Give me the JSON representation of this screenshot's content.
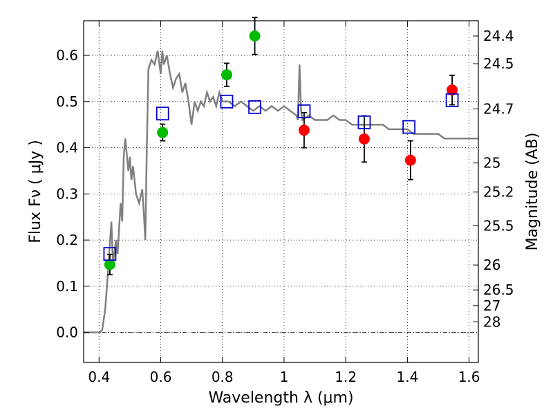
{
  "chart_data": {
    "type": "scatter",
    "xlabel": "Wavelength  λ (μm)",
    "ylabel": "Flux  Fν  ( μJy )",
    "y2label": "Magnitude (AB)",
    "xlim": [
      0.35,
      1.63
    ],
    "ylim": [
      -0.065,
      0.675
    ],
    "grid": true,
    "x_ticks": [
      0.4,
      0.6,
      0.8,
      1.0,
      1.2,
      1.4,
      1.6
    ],
    "x_tick_labels": [
      "0.4",
      "0.6",
      "0.8",
      "1",
      "1.2",
      "1.4",
      "1.6"
    ],
    "y_ticks": [
      0.0,
      0.1,
      0.2,
      0.3,
      0.4,
      0.5,
      0.6
    ],
    "y_tick_labels": [
      "0.0",
      "0.1",
      "0.2",
      "0.3",
      "0.4",
      "0.5",
      "0.6"
    ],
    "mag_ticks": [
      {
        "label": "24.4",
        "flux": 0.642
      },
      {
        "label": "24.5",
        "flux": 0.582
      },
      {
        "label": "24.7",
        "flux": 0.484
      },
      {
        "label": "25",
        "flux": 0.367
      },
      {
        "label": "25.2",
        "flux": 0.304
      },
      {
        "label": "25.5",
        "flux": 0.231
      },
      {
        "label": "26",
        "flux": 0.146
      },
      {
        "label": "26.5",
        "flux": 0.092
      },
      {
        "label": "27",
        "flux": 0.058
      },
      {
        "label": "28",
        "flux": 0.023
      }
    ],
    "colors": {
      "green": "#00bb00",
      "red": "#ff0000",
      "blue": "#0000cc",
      "sed": "#808080",
      "grid": "#000000"
    },
    "series": [
      {
        "marker": "circle",
        "color": "green",
        "points": [
          {
            "x": 0.435,
            "y": 0.147,
            "err": 0.022
          },
          {
            "x": 0.606,
            "y": 0.433,
            "err": 0.018
          },
          {
            "x": 0.814,
            "y": 0.558,
            "err": 0.025
          },
          {
            "x": 0.905,
            "y": 0.642,
            "err": 0.04
          }
        ]
      },
      {
        "marker": "circle",
        "color": "red",
        "points": [
          {
            "x": 1.065,
            "y": 0.438,
            "err": 0.038
          },
          {
            "x": 1.26,
            "y": 0.419,
            "err": 0.05
          },
          {
            "x": 1.41,
            "y": 0.373,
            "err": 0.042
          },
          {
            "x": 1.545,
            "y": 0.525,
            "err": 0.032
          }
        ]
      },
      {
        "marker": "square",
        "color": "blue",
        "points": [
          {
            "x": 0.435,
            "y": 0.17
          },
          {
            "x": 0.606,
            "y": 0.474
          },
          {
            "x": 0.814,
            "y": 0.5
          },
          {
            "x": 0.905,
            "y": 0.488
          },
          {
            "x": 1.065,
            "y": 0.479
          },
          {
            "x": 1.26,
            "y": 0.455
          },
          {
            "x": 1.405,
            "y": 0.445
          },
          {
            "x": 1.545,
            "y": 0.503
          }
        ]
      }
    ],
    "sed_curve": [
      [
        0.35,
        0.0
      ],
      [
        0.4,
        0.0
      ],
      [
        0.41,
        0.005
      ],
      [
        0.42,
        0.05
      ],
      [
        0.43,
        0.14
      ],
      [
        0.44,
        0.24
      ],
      [
        0.445,
        0.15
      ],
      [
        0.455,
        0.2
      ],
      [
        0.46,
        0.17
      ],
      [
        0.47,
        0.28
      ],
      [
        0.475,
        0.24
      ],
      [
        0.48,
        0.38
      ],
      [
        0.485,
        0.42
      ],
      [
        0.495,
        0.35
      ],
      [
        0.5,
        0.38
      ],
      [
        0.505,
        0.33
      ],
      [
        0.51,
        0.36
      ],
      [
        0.52,
        0.3
      ],
      [
        0.53,
        0.28
      ],
      [
        0.54,
        0.31
      ],
      [
        0.545,
        0.26
      ],
      [
        0.55,
        0.2
      ],
      [
        0.555,
        0.4
      ],
      [
        0.56,
        0.57
      ],
      [
        0.57,
        0.59
      ],
      [
        0.58,
        0.58
      ],
      [
        0.59,
        0.61
      ],
      [
        0.6,
        0.56
      ],
      [
        0.605,
        0.61
      ],
      [
        0.61,
        0.58
      ],
      [
        0.62,
        0.6
      ],
      [
        0.63,
        0.56
      ],
      [
        0.64,
        0.53
      ],
      [
        0.65,
        0.55
      ],
      [
        0.66,
        0.56
      ],
      [
        0.67,
        0.52
      ],
      [
        0.68,
        0.54
      ],
      [
        0.69,
        0.5
      ],
      [
        0.7,
        0.45
      ],
      [
        0.71,
        0.5
      ],
      [
        0.72,
        0.48
      ],
      [
        0.73,
        0.5
      ],
      [
        0.74,
        0.49
      ],
      [
        0.75,
        0.52
      ],
      [
        0.76,
        0.5
      ],
      [
        0.77,
        0.51
      ],
      [
        0.78,
        0.49
      ],
      [
        0.79,
        0.52
      ],
      [
        0.8,
        0.5
      ],
      [
        0.82,
        0.5
      ],
      [
        0.84,
        0.49
      ],
      [
        0.86,
        0.5
      ],
      [
        0.88,
        0.49
      ],
      [
        0.9,
        0.48
      ],
      [
        0.92,
        0.49
      ],
      [
        0.94,
        0.48
      ],
      [
        0.96,
        0.49
      ],
      [
        0.98,
        0.48
      ],
      [
        1.0,
        0.49
      ],
      [
        1.02,
        0.48
      ],
      [
        1.04,
        0.47
      ],
      [
        1.045,
        0.46
      ],
      [
        1.05,
        0.58
      ],
      [
        1.055,
        0.48
      ],
      [
        1.06,
        0.46
      ],
      [
        1.08,
        0.47
      ],
      [
        1.1,
        0.46
      ],
      [
        1.12,
        0.46
      ],
      [
        1.14,
        0.46
      ],
      [
        1.16,
        0.47
      ],
      [
        1.18,
        0.46
      ],
      [
        1.2,
        0.46
      ],
      [
        1.22,
        0.45
      ],
      [
        1.24,
        0.45
      ],
      [
        1.26,
        0.45
      ],
      [
        1.28,
        0.45
      ],
      [
        1.3,
        0.45
      ],
      [
        1.32,
        0.45
      ],
      [
        1.34,
        0.44
      ],
      [
        1.36,
        0.44
      ],
      [
        1.38,
        0.44
      ],
      [
        1.4,
        0.44
      ],
      [
        1.42,
        0.43
      ],
      [
        1.44,
        0.43
      ],
      [
        1.46,
        0.43
      ],
      [
        1.48,
        0.43
      ],
      [
        1.5,
        0.43
      ],
      [
        1.52,
        0.42
      ],
      [
        1.54,
        0.42
      ],
      [
        1.56,
        0.42
      ],
      [
        1.58,
        0.42
      ],
      [
        1.6,
        0.42
      ],
      [
        1.63,
        0.42
      ]
    ]
  }
}
